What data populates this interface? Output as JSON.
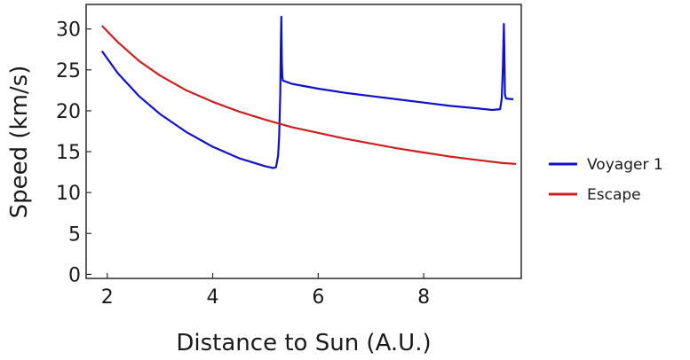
{
  "chart_data": {
    "type": "line",
    "title": "",
    "xlabel": "Distance to Sun (A.U.)",
    "ylabel": "Speed (km/s)",
    "xlim": [
      1.6,
      9.85
    ],
    "ylim": [
      -0.5,
      33
    ],
    "xticks": [
      2,
      4,
      6,
      8
    ],
    "yticks": [
      0,
      5,
      10,
      15,
      20,
      25,
      30
    ],
    "grid": false,
    "legend_position": "right",
    "series": [
      {
        "name": "Voyager 1",
        "color": "#1010c8",
        "points": [
          [
            1.9,
            27.3
          ],
          [
            2.2,
            24.6
          ],
          [
            2.6,
            21.8
          ],
          [
            3.0,
            19.6
          ],
          [
            3.5,
            17.4
          ],
          [
            4.0,
            15.6
          ],
          [
            4.5,
            14.2
          ],
          [
            5.0,
            13.2
          ],
          [
            5.15,
            13.0
          ],
          [
            5.2,
            13.1
          ],
          [
            5.24,
            14.5
          ],
          [
            5.26,
            17.0
          ],
          [
            5.28,
            22.0
          ],
          [
            5.29,
            28.0
          ],
          [
            5.3,
            31.5
          ],
          [
            5.31,
            26.0
          ],
          [
            5.32,
            24.2
          ],
          [
            5.33,
            23.7
          ],
          [
            5.5,
            23.3
          ],
          [
            6.0,
            22.7
          ],
          [
            6.5,
            22.2
          ],
          [
            7.0,
            21.8
          ],
          [
            7.5,
            21.4
          ],
          [
            8.0,
            21.0
          ],
          [
            8.5,
            20.6
          ],
          [
            9.0,
            20.3
          ],
          [
            9.3,
            20.1
          ],
          [
            9.45,
            20.2
          ],
          [
            9.48,
            21.5
          ],
          [
            9.5,
            25.0
          ],
          [
            9.52,
            30.6
          ],
          [
            9.53,
            27.0
          ],
          [
            9.54,
            22.0
          ],
          [
            9.56,
            21.5
          ],
          [
            9.7,
            21.4
          ]
        ]
      },
      {
        "name": "Escape",
        "color": "#cc1f1f",
        "points": [
          [
            1.9,
            30.4
          ],
          [
            2.2,
            28.4
          ],
          [
            2.6,
            26.1
          ],
          [
            3.0,
            24.3
          ],
          [
            3.5,
            22.5
          ],
          [
            4.0,
            21.1
          ],
          [
            4.5,
            19.9
          ],
          [
            5.0,
            18.9
          ],
          [
            5.5,
            18.0
          ],
          [
            6.0,
            17.3
          ],
          [
            6.5,
            16.6
          ],
          [
            7.0,
            16.0
          ],
          [
            7.5,
            15.4
          ],
          [
            8.0,
            14.9
          ],
          [
            8.5,
            14.4
          ],
          [
            9.0,
            14.0
          ],
          [
            9.5,
            13.6
          ],
          [
            9.75,
            13.5
          ]
        ]
      }
    ]
  }
}
